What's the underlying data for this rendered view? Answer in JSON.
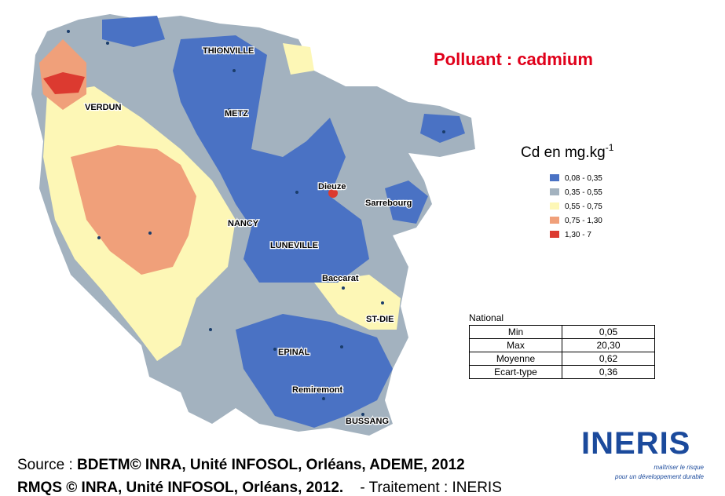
{
  "title": "Polluant : cadmium",
  "legend": {
    "unit_base": "Cd en mg.kg",
    "unit_exponent": "-1",
    "items": [
      {
        "label": "0,08 - 0,35",
        "color": "#4a72c4"
      },
      {
        "label": "0,35 - 0,55",
        "color": "#a3b2bf"
      },
      {
        "label": "0,55 - 0,75",
        "color": "#fdf7b6"
      },
      {
        "label": "0,75 - 1,30",
        "color": "#f0a07a"
      },
      {
        "label": "1,30 - 7",
        "color": "#dc3a30"
      }
    ]
  },
  "cities": [
    "THIONVILLE",
    "VERDUN",
    "METZ",
    "Dieuze",
    "Sarrebourg",
    "NANCY",
    "LUNEVILLE",
    "Baccarat",
    "ST-DIE",
    "EPINAL",
    "Remiremont",
    "BUSSANG"
  ],
  "table": {
    "caption": "National",
    "rows": [
      [
        "Min",
        "0,05"
      ],
      [
        "Max",
        "20,30"
      ],
      [
        "Moyenne",
        "0,62"
      ],
      [
        "Ecart-type",
        "0,36"
      ]
    ]
  },
  "source": {
    "line1_plain": "Source : ",
    "line1_bold": "BDETM© INRA, Unité INFOSOL, Orléans, ADEME, 2012",
    "line2_bold": "RMQS © INRA, Unité INFOSOL, Orléans, 2012.",
    "line2_plain": "- Traitement : INERIS"
  },
  "logo": {
    "name": "INERIS",
    "tagline1": "maîtriser le risque",
    "tagline2": "pour un développement durable"
  }
}
